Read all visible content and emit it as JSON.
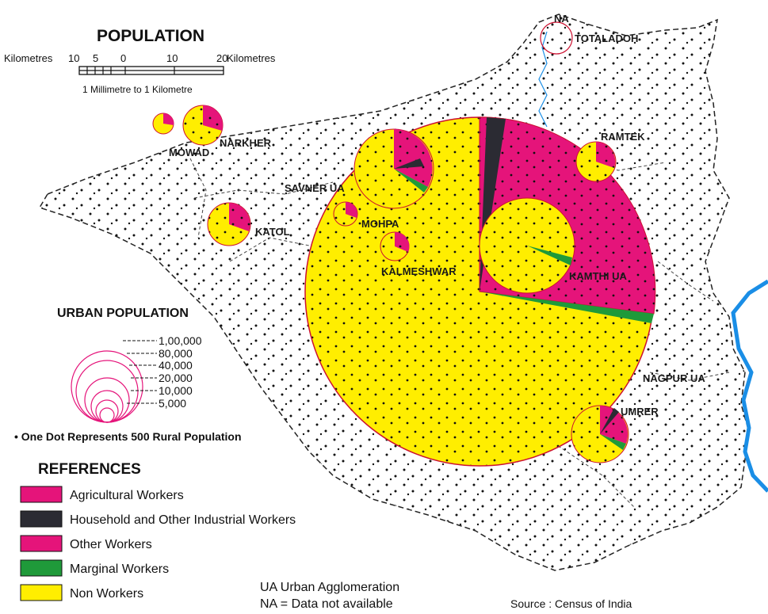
{
  "title": "POPULATION",
  "scale": {
    "left_unit": "Kilometres",
    "right_unit": "Kilometres",
    "ticks": [
      "10",
      "5",
      "0",
      "10",
      "20"
    ],
    "ratio": "1 Millimetre to 1 Kilometre"
  },
  "urban_population_legend": {
    "title": "URBAN POPULATION",
    "values": [
      "1,00,000",
      "80,000",
      "40,000",
      "20,000",
      "10,000",
      "5,000"
    ]
  },
  "dot_note": "One Dot Represents 500 Rural Population",
  "references": {
    "title": "REFERENCES",
    "items": [
      {
        "label": "Agricultural Workers",
        "color": "#e5147a"
      },
      {
        "label": "Household and Other Industrial Workers",
        "color": "#2b2b33"
      },
      {
        "label": "Other Workers",
        "color": "#e5147a"
      },
      {
        "label": "Marginal Workers",
        "color": "#1f9a3a"
      },
      {
        "label": "Non Workers",
        "color": "#ffee00"
      }
    ]
  },
  "notes": {
    "ua": "UA Urban Agglomeration",
    "na": "NA = Data not available",
    "source": "Source : Census of India"
  },
  "places": {
    "na": "NA",
    "totaladoh": "TOTALADOH",
    "ramtek": "RAMTEK",
    "narkher": "NARKHER",
    "mowad": "MOWAD",
    "savner": "SAVNER UA",
    "mohpa": "MOHPA",
    "katol": "KATOL",
    "kalmeshwar": "KALMESHWAR",
    "kamthi": "KAMTHI UA",
    "nagpur": "NAGPUR UA",
    "umrer": "UMRER"
  },
  "colors": {
    "non_workers": "#ffee00",
    "workers": "#e5147a",
    "household": "#2b2b33",
    "marginal": "#1f9a3a",
    "river": "#1a8ee6",
    "outline": "#cc1030"
  }
}
